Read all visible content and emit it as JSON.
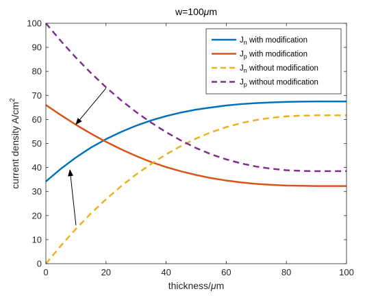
{
  "chart_data": {
    "type": "line",
    "title": {
      "main": "w=100",
      "mu": "μ",
      "unit": "m"
    },
    "xlabel": {
      "main": "thickness/",
      "mu": "μ",
      "unit": "m"
    },
    "ylabel": {
      "main": "current density A/cm",
      "sup": "2"
    },
    "xlim": [
      0,
      100
    ],
    "ylim": [
      0,
      100
    ],
    "xticks": [
      0,
      20,
      40,
      60,
      80,
      100
    ],
    "yticks": [
      0,
      10,
      20,
      30,
      40,
      50,
      60,
      70,
      80,
      90,
      100
    ],
    "grid": false,
    "box": true,
    "legend_position": "top-right",
    "x": [
      0,
      5,
      10,
      15,
      20,
      25,
      30,
      35,
      40,
      45,
      50,
      55,
      60,
      65,
      70,
      75,
      80,
      85,
      90,
      95,
      100
    ],
    "series": [
      {
        "name": {
          "main": "J",
          "sub": "n",
          "rest": " with modification"
        },
        "color": "#0072BD",
        "dash": "solid",
        "values": [
          34.2,
          39.5,
          44.2,
          48.3,
          51.8,
          54.8,
          57.4,
          59.6,
          61.4,
          62.9,
          64.1,
          65.0,
          65.8,
          66.4,
          66.8,
          67.1,
          67.3,
          67.4,
          67.5,
          67.5,
          67.5
        ]
      },
      {
        "name": {
          "main": "J",
          "sub": "p",
          "rest": " with modification"
        },
        "color": "#D95319",
        "dash": "solid",
        "values": [
          66.0,
          61.8,
          57.8,
          54.1,
          50.7,
          47.6,
          44.8,
          42.3,
          40.2,
          38.4,
          36.9,
          35.6,
          34.6,
          33.8,
          33.2,
          32.8,
          32.5,
          32.4,
          32.3,
          32.3,
          32.3
        ]
      },
      {
        "name": {
          "main": "J",
          "sub": "n",
          "rest": " without modification"
        },
        "color": "#EDB120",
        "dash": "dashed",
        "values": [
          0.0,
          7.5,
          14.5,
          20.9,
          26.8,
          32.2,
          37.1,
          41.5,
          45.5,
          49.0,
          52.1,
          54.7,
          56.8,
          58.5,
          59.8,
          60.7,
          61.3,
          61.6,
          61.7,
          61.7,
          61.7
        ]
      },
      {
        "name": {
          "main": "J",
          "sub": "p",
          "rest": " without modification"
        },
        "color": "#7E2F8E",
        "dash": "dashed",
        "values": [
          100.0,
          92.6,
          85.7,
          79.3,
          73.4,
          68.0,
          63.1,
          58.7,
          54.7,
          51.2,
          48.1,
          45.5,
          43.4,
          41.7,
          40.4,
          39.5,
          38.9,
          38.6,
          38.5,
          38.5,
          38.5
        ]
      }
    ],
    "annotations": [
      {
        "type": "arrow",
        "from": [
          20,
          73
        ],
        "to": [
          10,
          58
        ]
      },
      {
        "type": "arrow",
        "from": [
          10,
          16
        ],
        "to": [
          8,
          39
        ]
      }
    ]
  }
}
